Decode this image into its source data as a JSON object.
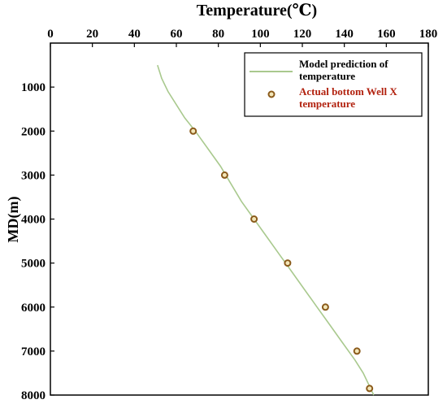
{
  "chart_data": {
    "type": "line",
    "title": "Temperature(℃)",
    "xlabel": "Temperature(℃)",
    "ylabel": "MD(m)",
    "xlim": [
      0,
      180
    ],
    "ylim": [
      8000,
      500
    ],
    "x_ticks": [
      0,
      20,
      40,
      60,
      80,
      100,
      120,
      140,
      160,
      180
    ],
    "y_ticks": [
      1000,
      2000,
      3000,
      4000,
      5000,
      6000,
      7000,
      8000
    ],
    "grid": false,
    "x_axis_position": "top",
    "y_axis_reversed": true,
    "legend_position": "top-right",
    "series": [
      {
        "name": "Model prediction of temperature",
        "style": "line",
        "color": "#a9c98e",
        "points": [
          [
            51,
            500
          ],
          [
            53,
            800
          ],
          [
            56,
            1100
          ],
          [
            60,
            1400
          ],
          [
            64,
            1700
          ],
          [
            69,
            2000
          ],
          [
            75,
            2400
          ],
          [
            81,
            2800
          ],
          [
            86,
            3200
          ],
          [
            91,
            3600
          ],
          [
            97,
            4000
          ],
          [
            103,
            4400
          ],
          [
            109,
            4800
          ],
          [
            115,
            5200
          ],
          [
            121,
            5600
          ],
          [
            127,
            6000
          ],
          [
            133,
            6400
          ],
          [
            139,
            6800
          ],
          [
            145,
            7200
          ],
          [
            149,
            7500
          ],
          [
            152,
            7800
          ],
          [
            154,
            8000
          ]
        ]
      },
      {
        "name": "Actual bottom Well X temperature",
        "style": "marker",
        "color": "#8a5a1a",
        "points": [
          [
            68,
            2000
          ],
          [
            83,
            3000
          ],
          [
            97,
            4000
          ],
          [
            113,
            5000
          ],
          [
            131,
            6000
          ],
          [
            146,
            7000
          ],
          [
            152,
            7850
          ]
        ]
      }
    ]
  },
  "legend": {
    "line_label": [
      "Model prediction of",
      "temperature"
    ],
    "marker_label": [
      "Actual bottom Well X",
      "temperature"
    ]
  }
}
